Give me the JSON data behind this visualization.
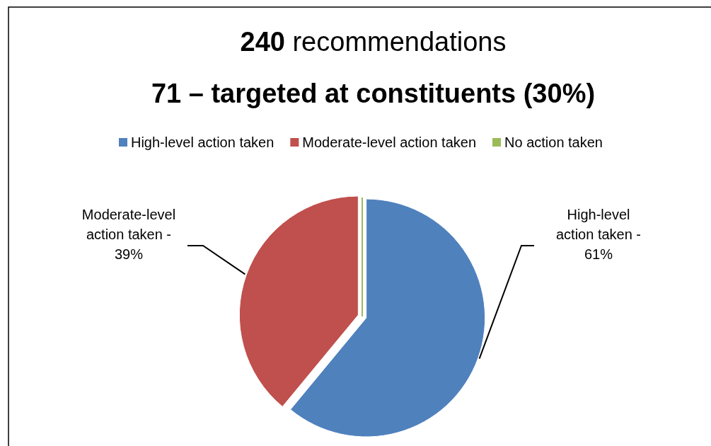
{
  "chart_data": {
    "type": "pie",
    "title": "240 recommendations",
    "subtitle": "71 – targeted at constituents (30%)",
    "categories": [
      "High-level action taken",
      "Moderate-level action taken",
      "No action taken"
    ],
    "values": [
      61,
      39,
      0
    ],
    "colors": [
      "#4f81bd",
      "#c0504d",
      "#9bbb59"
    ],
    "annotations": [
      "High-level action taken - 61%",
      "Moderate-level action taken - 39%"
    ],
    "legend": "top"
  }
}
